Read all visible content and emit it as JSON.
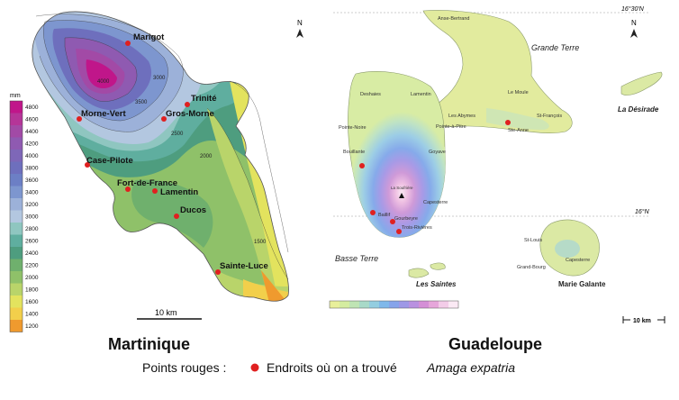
{
  "martinique": {
    "title": "Martinique",
    "scale_label": "10 km",
    "north": "N",
    "legend": {
      "unit": "mm",
      "ticks": [
        "4800",
        "4600",
        "4400",
        "4200",
        "4000",
        "3800",
        "3600",
        "3400",
        "3200",
        "3000",
        "2800",
        "2600",
        "2400",
        "2200",
        "2000",
        "1800",
        "1600",
        "1400",
        "1200"
      ],
      "colors": [
        "#c0168a",
        "#b53598",
        "#a24aa6",
        "#8f5ab1",
        "#7e67b8",
        "#6e6fbd",
        "#6c7fc5",
        "#7d96cf",
        "#9cb1d9",
        "#b3c7e0",
        "#8fc6c0",
        "#5fae9f",
        "#4e9d7f",
        "#6fb06d",
        "#8fc169",
        "#b9d46a",
        "#e3e35e",
        "#f2cf4b",
        "#ef9a2e"
      ]
    },
    "places": [
      {
        "name": "Marigot"
      },
      {
        "name": "Trinité"
      },
      {
        "name": "Morne-Vert"
      },
      {
        "name": "Gros-Morne"
      },
      {
        "name": "Case-Pilote"
      },
      {
        "name": "Fort-de-France"
      },
      {
        "name": "Lamentin"
      },
      {
        "name": "Ducos"
      },
      {
        "name": "Sainte-Luce"
      }
    ],
    "contours": [
      "4000",
      "3500",
      "3000",
      "2500",
      "2000",
      "1500"
    ]
  },
  "guadeloupe": {
    "title": "Guadeloupe",
    "scale_label": "10 km",
    "north": "N",
    "lat_top": "16°30'N",
    "lat_mid": "16°N",
    "regions": [
      "Grande Terre",
      "Basse Terre",
      "La Désirade",
      "Les Saintes",
      "Marie Galante"
    ],
    "places": [
      {
        "name": "Anse-Bertrand"
      },
      {
        "name": "Deshaies"
      },
      {
        "name": "Lamentin"
      },
      {
        "name": "Le Moule"
      },
      {
        "name": "Les Abymes"
      },
      {
        "name": "Pointe-à-Pitre"
      },
      {
        "name": "St-François"
      },
      {
        "name": "Ste-Anne"
      },
      {
        "name": "Pointe-Noire"
      },
      {
        "name": "Bouillante"
      },
      {
        "name": "Goyave"
      },
      {
        "name": "La Soufrière"
      },
      {
        "name": "Capesterre"
      },
      {
        "name": "Baillif"
      },
      {
        "name": "Gourbeyre"
      },
      {
        "name": "Trois-Rivières"
      },
      {
        "name": "St-Louis"
      },
      {
        "name": "Grand-Bourg"
      },
      {
        "name": "Capesterre"
      }
    ],
    "legend_colors": [
      "#e8ef9a",
      "#d4eca0",
      "#bfe4b4",
      "#a8d9c8",
      "#93cde0",
      "#7fb8ea",
      "#86a4ea",
      "#9e98e6",
      "#b991e0",
      "#d48fd6",
      "#e6a6da",
      "#f3cce8",
      "#fbe9f4"
    ]
  },
  "footer": {
    "prefix": "Points rouges :",
    "text": "Endroits où on a trouvé",
    "species": "Amaga expatria"
  }
}
